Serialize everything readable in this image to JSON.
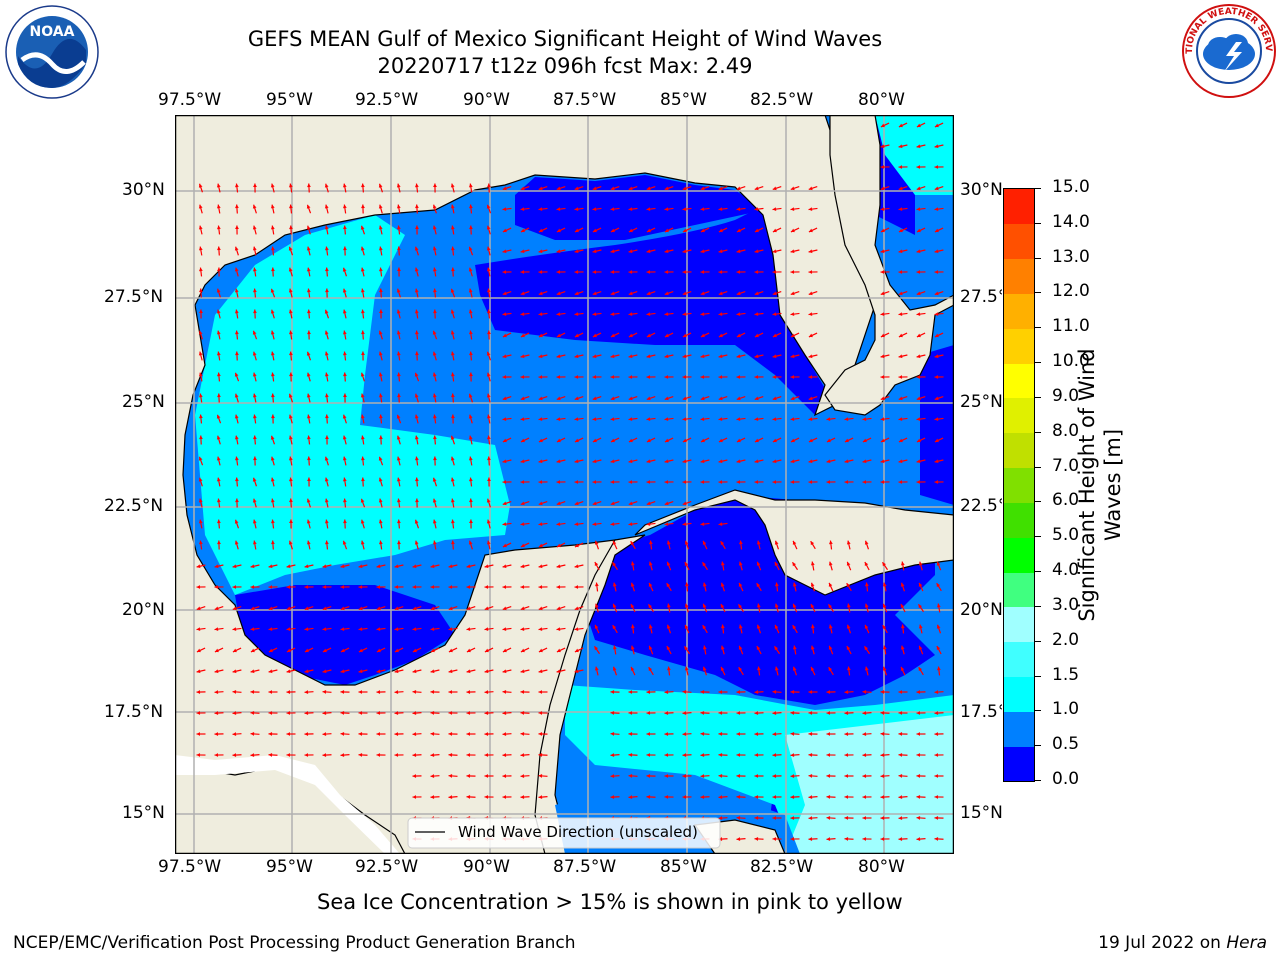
{
  "header": {
    "title": "GEFS MEAN Gulf of Mexico Significant Height of Wind Waves",
    "subtitle": "20220717 t12z 096h fcst   Max: 2.49"
  },
  "logos": {
    "left": {
      "name": "noaa-logo",
      "text": "NOAA",
      "ring_text": "NATIONAL OCEANIC AND ATMOSPHERIC ADMINISTRATION · U.S. DEPARTMENT OF COMMERCE"
    },
    "right": {
      "name": "nws-logo",
      "ring_text": "NATIONAL WEATHER SERVICE"
    }
  },
  "map": {
    "lon_ticks": [
      "97.5°W",
      "95°W",
      "92.5°W",
      "90°W",
      "87.5°W",
      "85°W",
      "82.5°W",
      "80°W"
    ],
    "lat_ticks": [
      "30°N",
      "27.5°N",
      "25°N",
      "22.5°N",
      "20°N",
      "17.5°N",
      "15°N"
    ],
    "legend_label": "Wind Wave Direction (unscaled)",
    "colors": {
      "land": "#efedde",
      "vector": "#ff0000",
      "grid": "#b0b0b0",
      "coast": "#000000"
    }
  },
  "colorbar": {
    "label_line1": "Significant Height of Wind",
    "label_line2": "Waves [m]",
    "ticks": [
      "0.0",
      "0.5",
      "1.0",
      "1.5",
      "2.0",
      "3.0",
      "4.0",
      "5.0",
      "6.0",
      "7.0",
      "8.0",
      "9.0",
      "10.0",
      "11.0",
      "12.0",
      "13.0",
      "14.0",
      "15.0"
    ],
    "colors": [
      "#0000ff",
      "#0080ff",
      "#00ffff",
      "#40ffff",
      "#a0ffff",
      "#40ff80",
      "#00ff00",
      "#40e000",
      "#80e000",
      "#c0e000",
      "#e0f000",
      "#ffff00",
      "#ffd000",
      "#ffb000",
      "#ff8000",
      "#ff5000",
      "#ff2000"
    ]
  },
  "note": "Sea Ice Concentration > 15% is shown in pink to yellow",
  "footer": {
    "left": "NCEP/EMC/Verification Post Processing Product Generation Branch",
    "right_date": "19 Jul 2022 on ",
    "right_host": "Hera"
  }
}
